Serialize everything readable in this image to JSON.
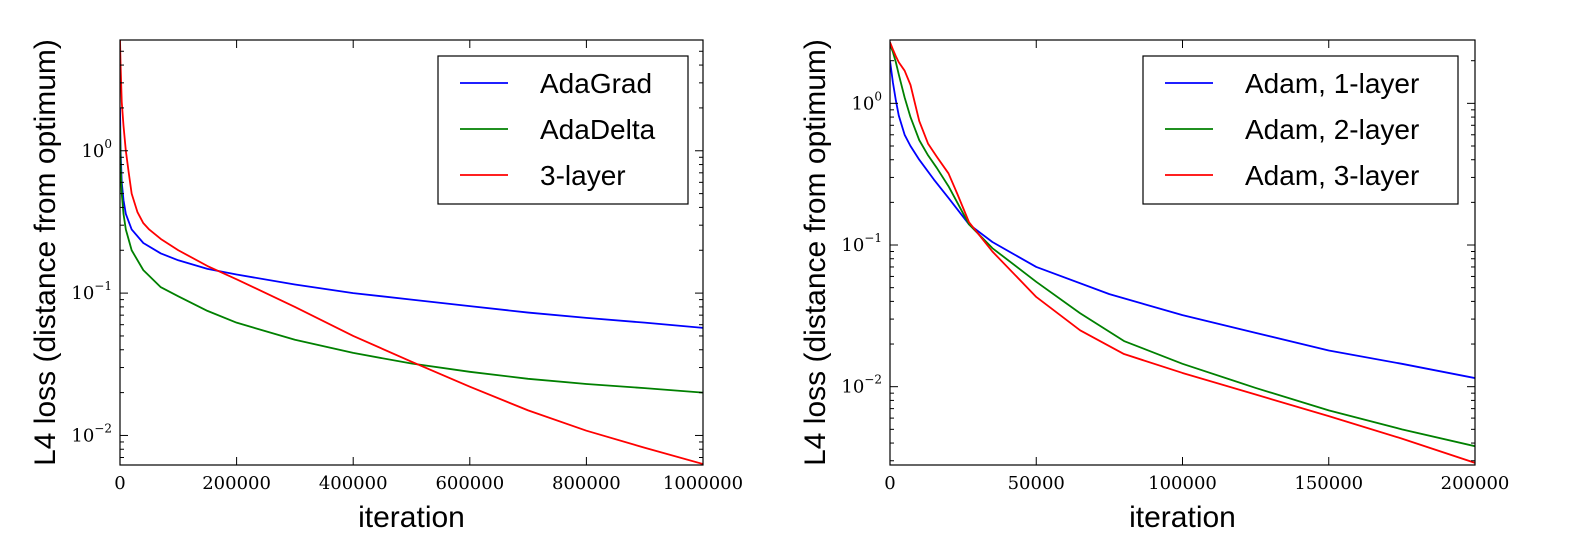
{
  "chart_data": [
    {
      "type": "line",
      "xlabel": "iteration",
      "ylabel": "L4 loss (distance from optimum)",
      "xscale": "linear",
      "yscale": "log",
      "xlim": [
        0,
        1000000
      ],
      "ylim": [
        0.0062,
        6.0
      ],
      "xticks": [
        0,
        200000,
        400000,
        600000,
        800000,
        1000000
      ],
      "xtick_labels": [
        "0",
        "200000",
        "400000",
        "600000",
        "800000",
        "1000000"
      ],
      "yticks": [
        1,
        0.1,
        0.01
      ],
      "ytick_labels": [
        {
          "base": "10",
          "exp": "0"
        },
        {
          "base": "10",
          "exp": "−1"
        },
        {
          "base": "10",
          "exp": "−2"
        }
      ],
      "grid": false,
      "legend_position": "top-right",
      "series": [
        {
          "name": "AdaGrad",
          "color": "#0000ff",
          "x": [
            0,
            1000,
            3000,
            6000,
            10000,
            20000,
            40000,
            70000,
            100000,
            150000,
            200000,
            300000,
            400000,
            500000,
            600000,
            700000,
            800000,
            900000,
            1000000
          ],
          "y": [
            2.0,
            1.0,
            0.6,
            0.45,
            0.36,
            0.28,
            0.225,
            0.19,
            0.17,
            0.148,
            0.135,
            0.115,
            0.1,
            0.09,
            0.081,
            0.073,
            0.067,
            0.062,
            0.057
          ]
        },
        {
          "name": "AdaDelta",
          "color": "#008000",
          "x": [
            0,
            1000,
            3000,
            6000,
            10000,
            20000,
            40000,
            70000,
            100000,
            150000,
            200000,
            300000,
            400000,
            500000,
            600000,
            700000,
            800000,
            900000,
            1000000
          ],
          "y": [
            1.5,
            0.8,
            0.5,
            0.36,
            0.28,
            0.2,
            0.145,
            0.11,
            0.095,
            0.075,
            0.062,
            0.047,
            0.038,
            0.032,
            0.028,
            0.025,
            0.023,
            0.0215,
            0.02
          ]
        },
        {
          "name": "3-layer",
          "color": "#ff0000",
          "x": [
            0,
            1000,
            3000,
            6000,
            10000,
            15000,
            20000,
            30000,
            40000,
            50000,
            70000,
            100000,
            150000,
            200000,
            300000,
            400000,
            500000,
            600000,
            700000,
            800000,
            900000,
            1000000
          ],
          "y": [
            6.0,
            4.0,
            2.2,
            1.5,
            1.0,
            0.7,
            0.5,
            0.37,
            0.31,
            0.28,
            0.24,
            0.2,
            0.155,
            0.125,
            0.08,
            0.05,
            0.033,
            0.022,
            0.015,
            0.0108,
            0.0082,
            0.0063
          ]
        }
      ]
    },
    {
      "type": "line",
      "xlabel": "iteration",
      "ylabel": "L4 loss (distance from optimum)",
      "xscale": "linear",
      "yscale": "log",
      "xlim": [
        0,
        200000
      ],
      "ylim": [
        0.0028,
        2.8
      ],
      "xticks": [
        0,
        50000,
        100000,
        150000,
        200000
      ],
      "xtick_labels": [
        "0",
        "50000",
        "100000",
        "150000",
        "200000"
      ],
      "yticks": [
        1,
        0.1,
        0.01
      ],
      "ytick_labels": [
        {
          "base": "10",
          "exp": "0"
        },
        {
          "base": "10",
          "exp": "−1"
        },
        {
          "base": "10",
          "exp": "−2"
        }
      ],
      "grid": false,
      "legend_position": "top-right",
      "series": [
        {
          "name": "Adam, 1-layer",
          "color": "#0000ff",
          "x": [
            0,
            1000,
            2000,
            3000,
            5000,
            7000,
            10000,
            15000,
            20000,
            27000,
            35000,
            50000,
            75000,
            100000,
            125000,
            150000,
            175000,
            200000
          ],
          "y": [
            2.0,
            1.4,
            1.05,
            0.82,
            0.6,
            0.5,
            0.4,
            0.29,
            0.215,
            0.14,
            0.105,
            0.07,
            0.045,
            0.032,
            0.024,
            0.018,
            0.0145,
            0.0115
          ]
        },
        {
          "name": "Adam, 2-layer",
          "color": "#008000",
          "x": [
            0,
            1000,
            2000,
            3000,
            5000,
            7000,
            10000,
            13000,
            16000,
            20000,
            27000,
            35000,
            50000,
            65000,
            80000,
            100000,
            125000,
            150000,
            175000,
            200000
          ],
          "y": [
            2.6,
            2.3,
            1.95,
            1.6,
            1.1,
            0.8,
            0.55,
            0.43,
            0.35,
            0.26,
            0.14,
            0.095,
            0.055,
            0.033,
            0.021,
            0.0145,
            0.0098,
            0.0068,
            0.005,
            0.0038
          ]
        },
        {
          "name": "Adam, 3-layer",
          "color": "#ff0000",
          "x": [
            0,
            1000,
            2000,
            3000,
            5000,
            7000,
            10000,
            13000,
            16000,
            20000,
            23000,
            27000,
            35000,
            50000,
            65000,
            80000,
            100000,
            125000,
            150000,
            175000,
            200000
          ],
          "y": [
            2.7,
            2.4,
            2.15,
            1.95,
            1.7,
            1.35,
            0.75,
            0.52,
            0.42,
            0.32,
            0.23,
            0.145,
            0.09,
            0.043,
            0.025,
            0.017,
            0.0125,
            0.0088,
            0.0062,
            0.0043,
            0.0029
          ]
        }
      ]
    }
  ]
}
